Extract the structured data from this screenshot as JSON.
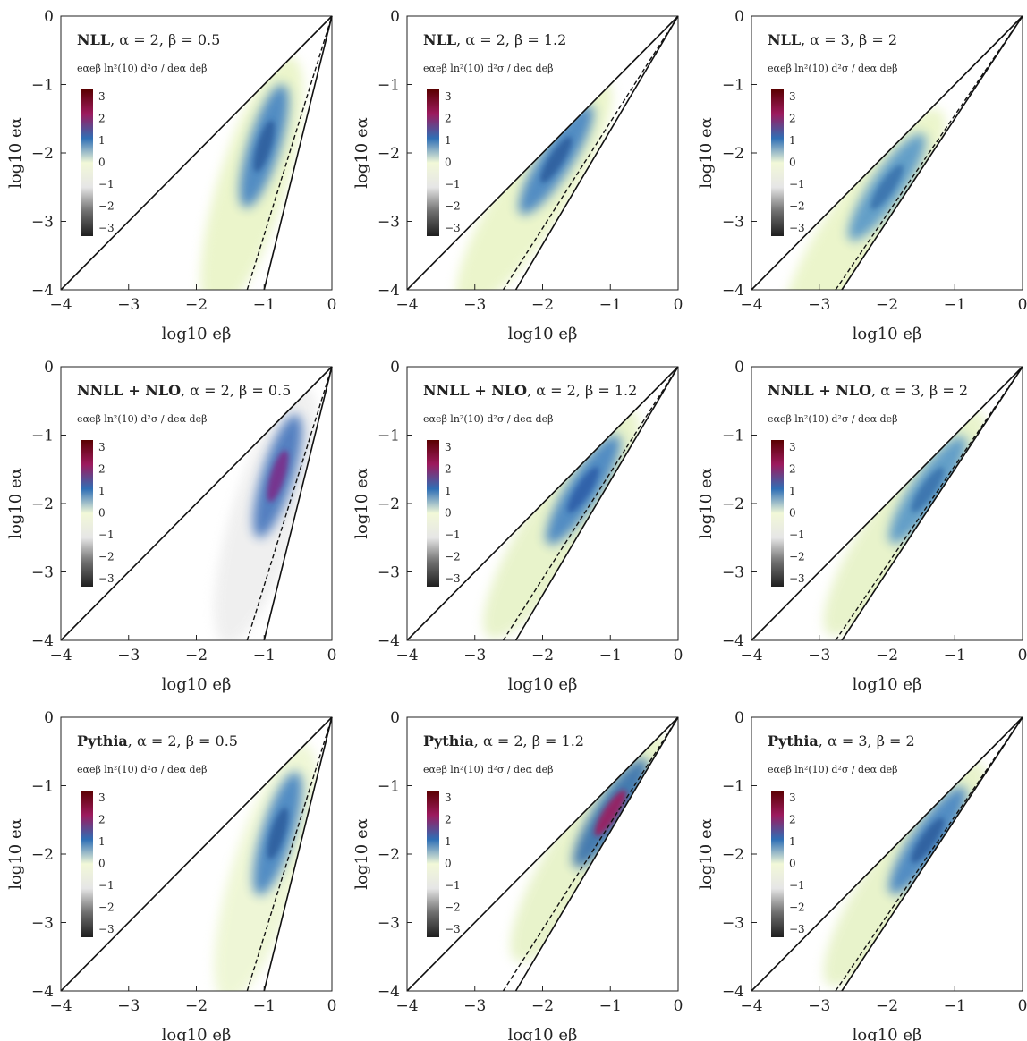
{
  "colorbar": {
    "formula": "eαeβ ln²(10) d²σ / deα deβ",
    "ticks": [
      "3",
      "2",
      "1",
      "0",
      "−1",
      "−2",
      "−3"
    ],
    "colors": [
      "#5a0000",
      "#9c1a5e",
      "#2f6fb5",
      "#f2f8d8",
      "#e6e6e6",
      "#6e6e6e",
      "#1e1e1e"
    ]
  },
  "axis_labels": {
    "x": "log10 eβ",
    "y": "log10 eα"
  },
  "ticks": {
    "x": [
      "−4",
      "−3",
      "−2",
      "−1",
      "0"
    ],
    "y": [
      "−4",
      "−3",
      "−2",
      "−1",
      "0"
    ]
  },
  "chart_data": [
    {
      "type": "heatmap",
      "method": "NLL",
      "alpha": "2",
      "beta": "0.5",
      "xlim": [
        -4,
        0
      ],
      "ylim": [
        -4,
        0
      ],
      "boundaries": {
        "solid_lower_slope": 4,
        "dashed_slope": 3.2,
        "solid_upper": "y = x"
      },
      "peak": {
        "x": -1.0,
        "y": -1.9,
        "value": 1.3
      }
    },
    {
      "type": "heatmap",
      "method": "NLL",
      "alpha": "2",
      "beta": "1.2",
      "xlim": [
        -4,
        0
      ],
      "ylim": [
        -4,
        0
      ],
      "boundaries": {
        "solid_lower_slope": 1.67,
        "dashed_slope": 1.55,
        "solid_upper": "y = x"
      },
      "peak": {
        "x": -1.8,
        "y": -2.1,
        "value": 1.2
      }
    },
    {
      "type": "heatmap",
      "method": "NLL",
      "alpha": "3",
      "beta": "2",
      "xlim": [
        -4,
        0
      ],
      "ylim": [
        -4,
        0
      ],
      "boundaries": {
        "solid_lower_slope": 1.5,
        "dashed_slope": 1.45,
        "solid_upper": "y = x"
      },
      "peak": {
        "x": -2.0,
        "y": -2.5,
        "value": 1.0
      }
    },
    {
      "type": "heatmap",
      "method": "NNLL + NLO",
      "alpha": "2",
      "beta": "0.5",
      "xlim": [
        -4,
        0
      ],
      "ylim": [
        -4,
        0
      ],
      "boundaries": {
        "solid_lower_slope": 4,
        "dashed_slope": 3.2,
        "solid_upper": "y = x"
      },
      "peak": {
        "x": -0.8,
        "y": -1.6,
        "value": 2.3
      }
    },
    {
      "type": "heatmap",
      "method": "NNLL + NLO",
      "alpha": "2",
      "beta": "1.2",
      "xlim": [
        -4,
        0
      ],
      "ylim": [
        -4,
        0
      ],
      "boundaries": {
        "solid_lower_slope": 1.67,
        "dashed_slope": 1.55,
        "solid_upper": "y = x"
      },
      "peak": {
        "x": -1.4,
        "y": -1.8,
        "value": 1.4
      }
    },
    {
      "type": "heatmap",
      "method": "NNLL + NLO",
      "alpha": "3",
      "beta": "2",
      "xlim": [
        -4,
        0
      ],
      "ylim": [
        -4,
        0
      ],
      "boundaries": {
        "solid_lower_slope": 1.5,
        "dashed_slope": 1.45,
        "solid_upper": "y = x"
      },
      "peak": {
        "x": -1.4,
        "y": -1.8,
        "value": 1.2
      }
    },
    {
      "type": "heatmap",
      "method": "Pythia",
      "alpha": "2",
      "beta": "0.5",
      "xlim": [
        -4,
        0
      ],
      "ylim": [
        -4,
        0
      ],
      "boundaries": {
        "solid_lower_slope": 4,
        "dashed_slope": 3.2,
        "solid_upper": "y = x"
      },
      "peak": {
        "x": -0.8,
        "y": -1.7,
        "value": 1.3
      }
    },
    {
      "type": "heatmap",
      "method": "Pythia",
      "alpha": "2",
      "beta": "1.2",
      "xlim": [
        -4,
        0
      ],
      "ylim": [
        -4,
        0
      ],
      "boundaries": {
        "solid_lower_slope": 1.67,
        "dashed_slope": 1.55,
        "solid_upper": "y = x"
      },
      "peak": {
        "x": -1.0,
        "y": -1.4,
        "value": 2.2
      }
    },
    {
      "type": "heatmap",
      "method": "Pythia",
      "alpha": "3",
      "beta": "2",
      "xlim": [
        -4,
        0
      ],
      "ylim": [
        -4,
        0
      ],
      "boundaries": {
        "solid_lower_slope": 1.5,
        "dashed_slope": 1.45,
        "solid_upper": "y = x"
      },
      "peak": {
        "x": -1.4,
        "y": -1.8,
        "value": 1.7
      }
    }
  ]
}
